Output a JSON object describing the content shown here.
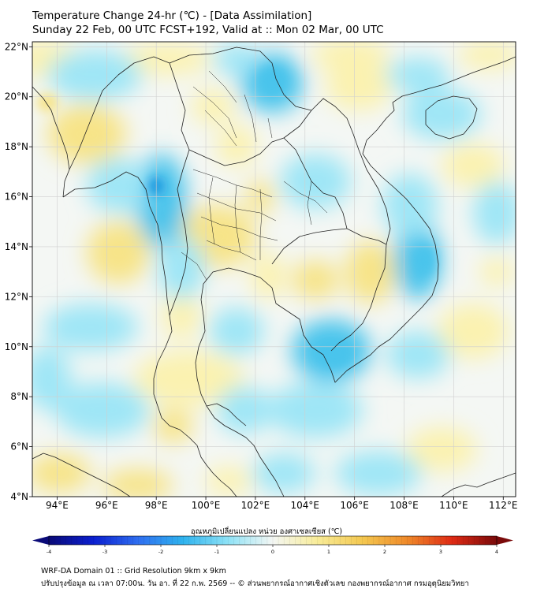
{
  "header": {
    "title_line1": "Temperature Change 24-hr (℃) - [Data Assimilation]",
    "title_line2": "Sunday 22 Feb, 00 UTC FCST+192, Valid at :: Mon 02 Mar, 00 UTC"
  },
  "map": {
    "lon_range": [
      93,
      112.5
    ],
    "lat_range": [
      4,
      22.2
    ],
    "lon_ticks": [
      "94°E",
      "96°E",
      "98°E",
      "100°E",
      "102°E",
      "104°E",
      "106°E",
      "108°E",
      "110°E",
      "112°E"
    ],
    "lat_ticks": [
      "22°N",
      "20°N",
      "18°N",
      "16°N",
      "14°N",
      "12°N",
      "10°N",
      "8°N",
      "6°N",
      "4°N"
    ],
    "grid": true,
    "field": "24-hr temperature change, mostly between -2 and +1 °C",
    "colors": {
      "neutral": "#f4f7f4",
      "cool_light": "#9fe6f6",
      "cool": "#48c4ec",
      "cool_strong": "#1494de",
      "warm_light": "#fbf2b0",
      "warm": "#f7e488",
      "boundary": "#222222",
      "grid": "#cfcfcf"
    }
  },
  "colorbar": {
    "label": "อุณหภูมิเปลี่ยนแปลง หน่วย องศาเซลเซียส (℃)",
    "min": -4,
    "max": 4,
    "ticks": [
      "-4",
      "-3",
      "-2",
      "-1",
      "0",
      "1",
      "2",
      "3",
      "4"
    ],
    "extend": "both",
    "stops": [
      "#0a0a78",
      "#0b1fd0",
      "#2f6ff0",
      "#2fb3ee",
      "#8ee2f6",
      "#f4f7f4",
      "#f8ec98",
      "#f4c850",
      "#ef8a2a",
      "#df2a14",
      "#7a0a0a"
    ]
  },
  "footer": {
    "line1": "WRF-DA Domain 01 :: Grid Resolution 9km x 9km",
    "line2": "ปรับปรุงข้อมูล ณ เวลา 07:00น. วัน อา. ที่ 22 ก.พ. 2569 -- © ส่วนพยากรณ์อากาศเชิงตัวเลข กองพยากรณ์อากาศ กรมอุตุนิยมวิทยา"
  }
}
